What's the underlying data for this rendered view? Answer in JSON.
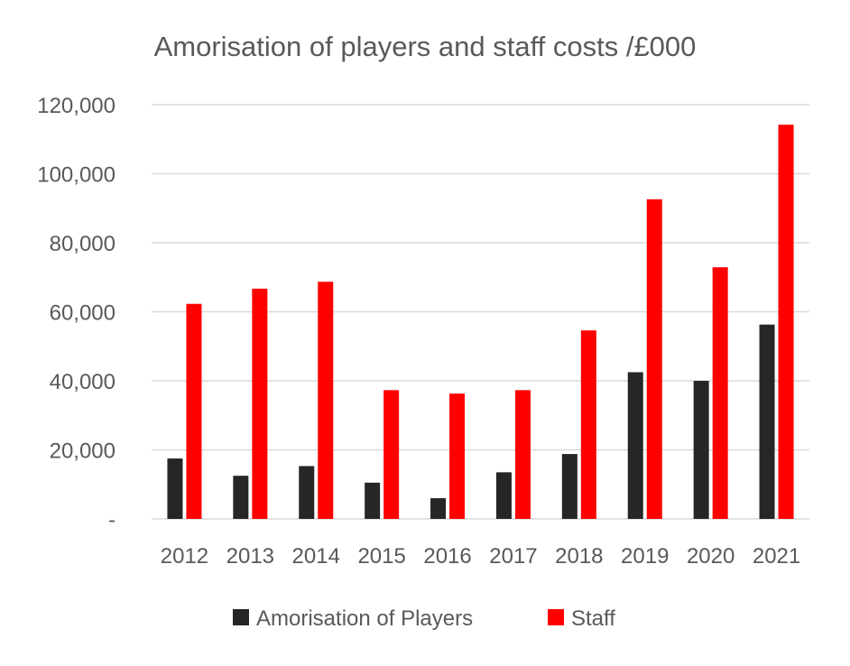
{
  "chart_data": {
    "type": "bar",
    "title": "Amorisation of players and staff costs /£000",
    "xlabel": "",
    "ylabel": "",
    "categories": [
      "2012",
      "2013",
      "2014",
      "2015",
      "2016",
      "2017",
      "2018",
      "2019",
      "2020",
      "2021"
    ],
    "series": [
      {
        "name": "Amorisation of Players",
        "color": "#262626",
        "values": [
          17500,
          12500,
          15300,
          10500,
          6000,
          13500,
          18800,
          42500,
          40000,
          56300
        ]
      },
      {
        "name": "Staff",
        "color": "#ff0000",
        "values": [
          62300,
          66700,
          68700,
          37300,
          36300,
          37300,
          54600,
          92600,
          72900,
          114200
        ]
      }
    ],
    "ylim": [
      0,
      120000
    ],
    "yticks": [
      {
        "value": 0,
        "label": "-"
      },
      {
        "value": 20000,
        "label": "20,000"
      },
      {
        "value": 40000,
        "label": "40,000"
      },
      {
        "value": 60000,
        "label": "60,000"
      },
      {
        "value": 80000,
        "label": "80,000"
      },
      {
        "value": 100000,
        "label": "100,000"
      },
      {
        "value": 120000,
        "label": "120,000"
      }
    ],
    "grid": true,
    "legend_position": "bottom",
    "gridline_color": "#d9d9d9",
    "text_color": "#595959"
  }
}
